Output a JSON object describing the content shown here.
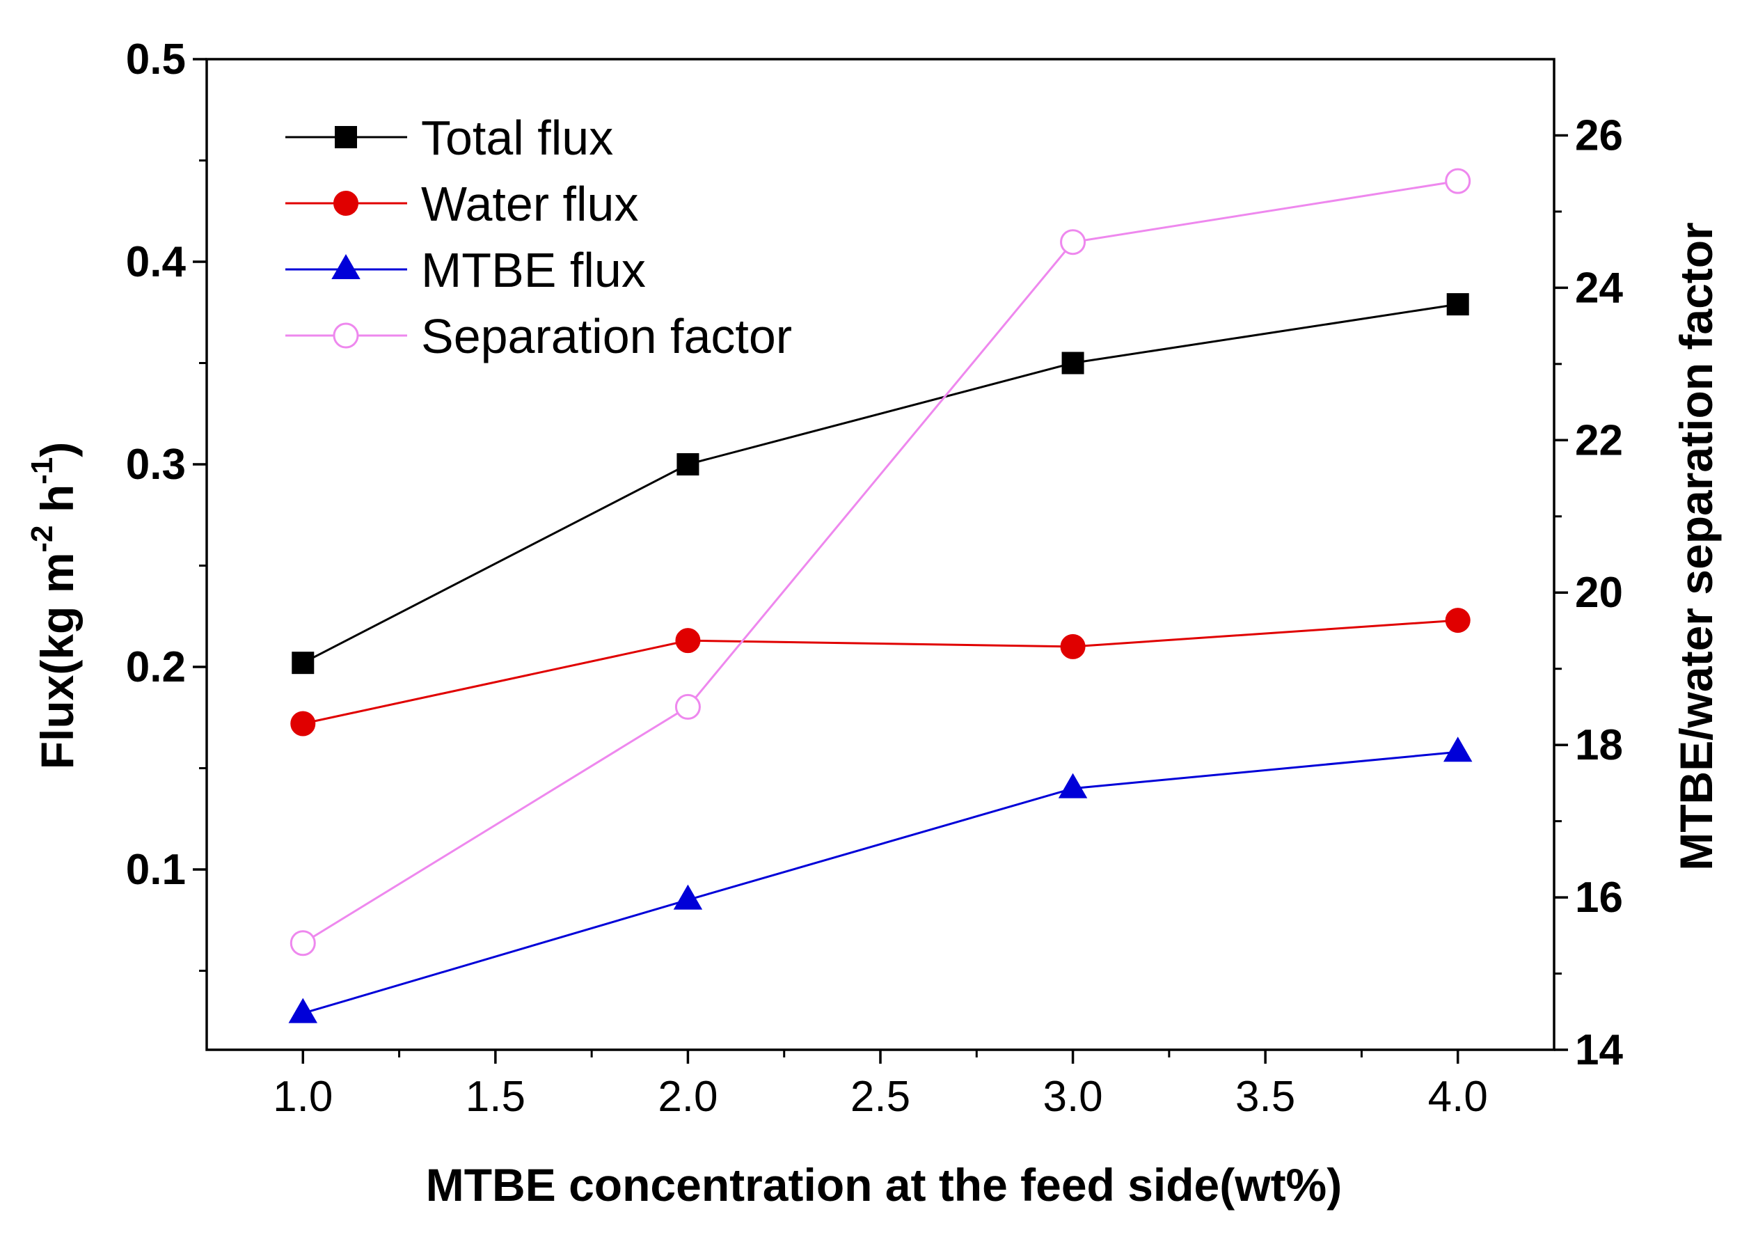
{
  "chart_data": {
    "type": "line",
    "title": "",
    "xlabel": "MTBE concentration  at the feed side(wt%)",
    "ylabel": {
      "text": "Flux(kg m",
      "sup1": "-2",
      "mid": " h",
      "sup2": "-1",
      "end": ")"
    },
    "y2label": "MTBE/water separation factor",
    "xlim": [
      0.75,
      4.25
    ],
    "ylim": [
      0.011,
      0.5
    ],
    "y2lim": [
      14,
      27
    ],
    "xticks": [
      1.0,
      1.5,
      2.0,
      2.5,
      3.0,
      3.5,
      4.0
    ],
    "xtick_labels": [
      "1.0",
      "1.5",
      "2.0",
      "2.5",
      "3.0",
      "3.5",
      "4.0"
    ],
    "yticks": [
      0.1,
      0.2,
      0.3,
      0.4,
      0.5
    ],
    "ytick_labels": [
      "0.1",
      "0.2",
      "0.3",
      "0.4",
      "0.5"
    ],
    "y2ticks": [
      14,
      16,
      18,
      20,
      22,
      24,
      26
    ],
    "y2tick_labels": [
      "14",
      "16",
      "18",
      "20",
      "22",
      "24",
      "26"
    ],
    "grid": false,
    "legend_position": "top-left",
    "x": [
      1.0,
      2.0,
      3.0,
      4.0
    ],
    "series": [
      {
        "name": "Total flux",
        "axis": "left",
        "color": "#000000",
        "marker": "square-filled",
        "values": [
          0.202,
          0.3,
          0.35,
          0.379
        ]
      },
      {
        "name": "Water flux",
        "axis": "left",
        "color": "#e00000",
        "marker": "circle-filled",
        "values": [
          0.172,
          0.213,
          0.21,
          0.223
        ]
      },
      {
        "name": "MTBE flux",
        "axis": "left",
        "color": "#0000d8",
        "marker": "triangle-filled",
        "values": [
          0.029,
          0.085,
          0.14,
          0.158
        ]
      },
      {
        "name": "Separation factor",
        "axis": "right",
        "color": "#ee88ee",
        "marker": "circle-open",
        "values": [
          15.4,
          18.5,
          24.6,
          25.4
        ]
      }
    ]
  }
}
